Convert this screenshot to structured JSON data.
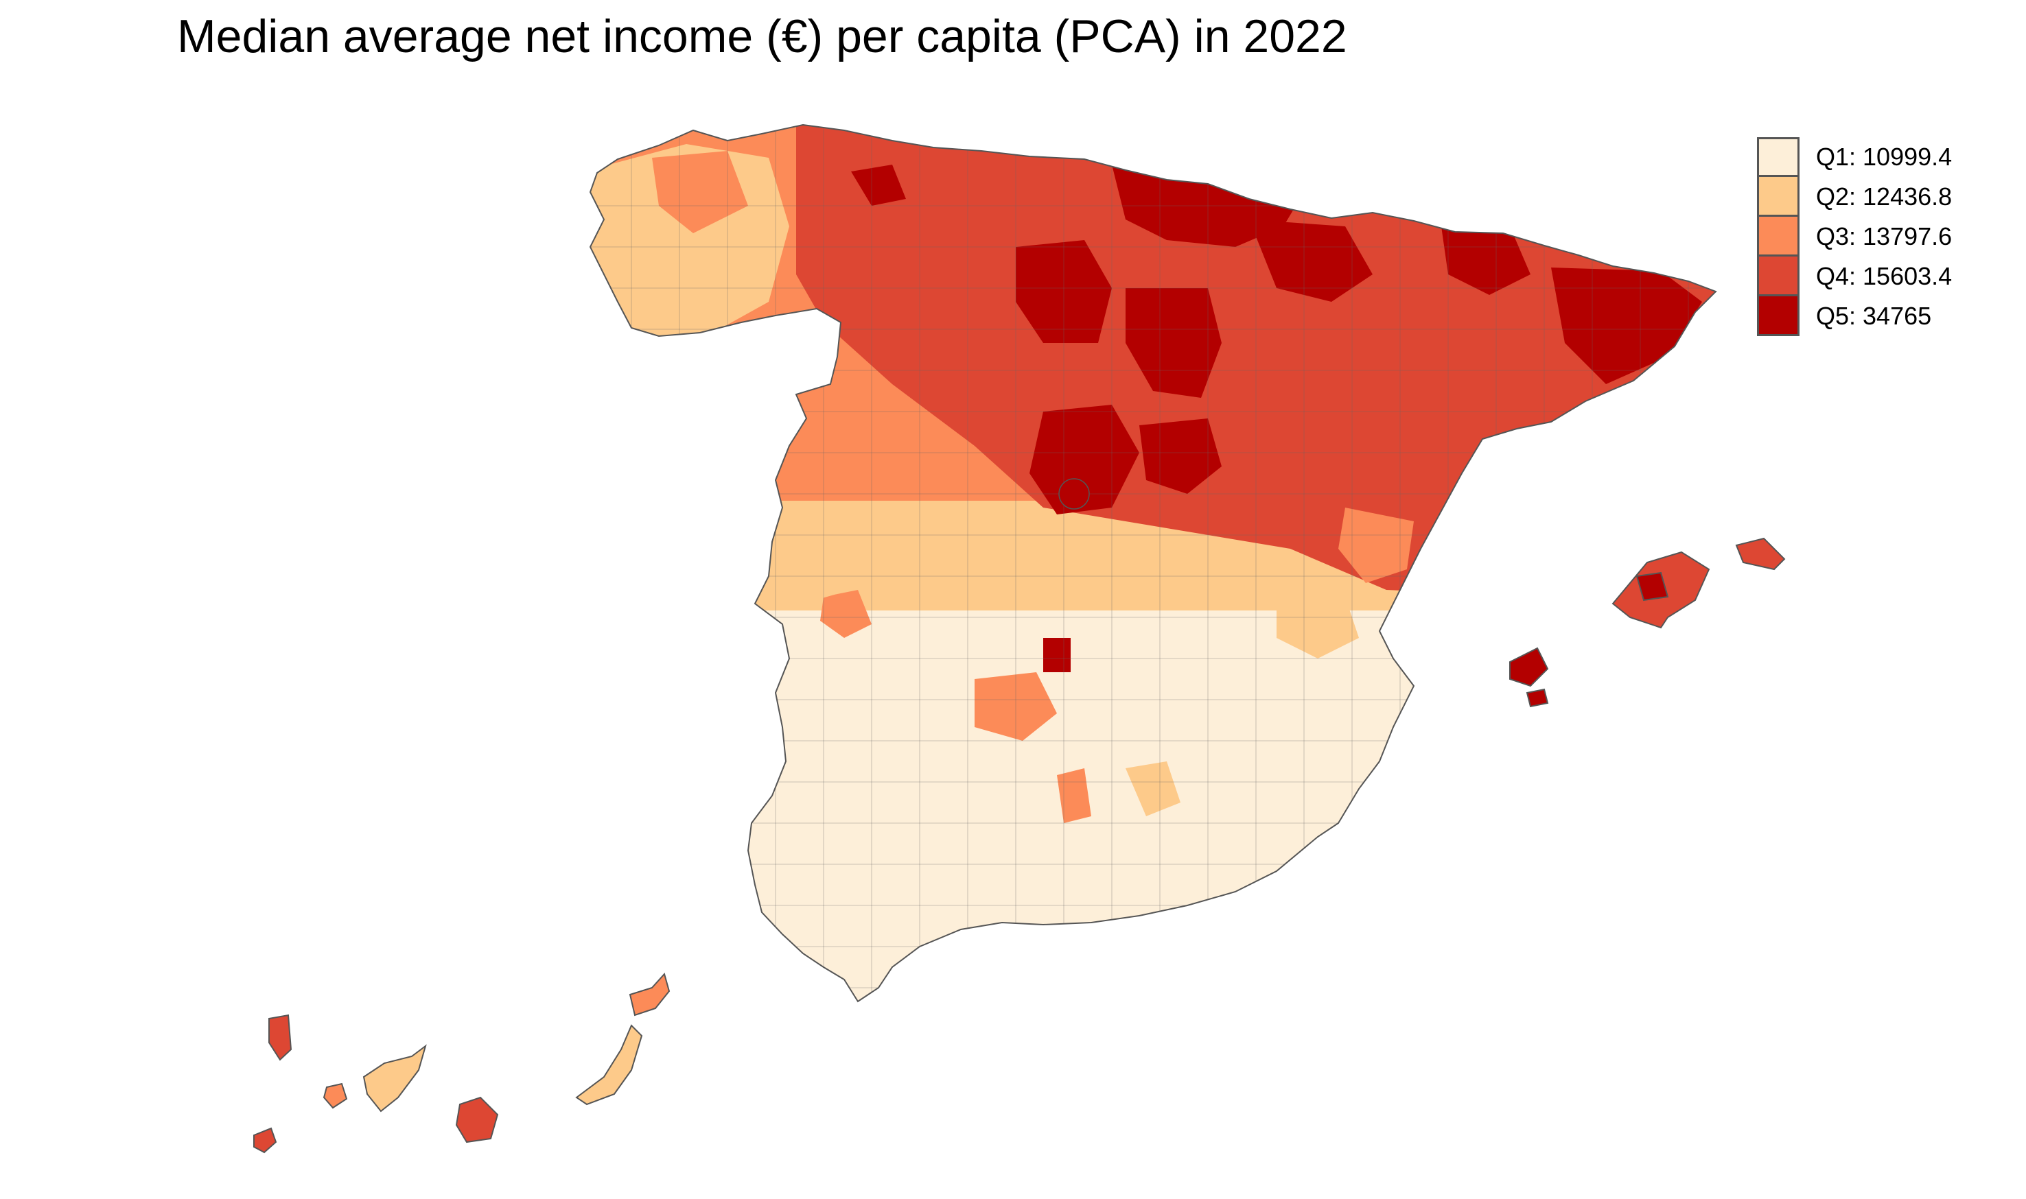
{
  "title": "Median average net income (€) per capita (PCA) in 2022",
  "legend": {
    "items": [
      {
        "label": "Q1: 10999.4",
        "color": "#fdefd9"
      },
      {
        "label": "Q2: 12436.8",
        "color": "#fdca8a"
      },
      {
        "label": "Q3: 13797.6",
        "color": "#fc8b58"
      },
      {
        "label": "Q4: 15603.4",
        "color": "#dd4733"
      },
      {
        "label": "Q5: 34765",
        "color": "#b30000"
      }
    ]
  },
  "colors": {
    "border": "#555555",
    "background": "#ffffff"
  }
}
